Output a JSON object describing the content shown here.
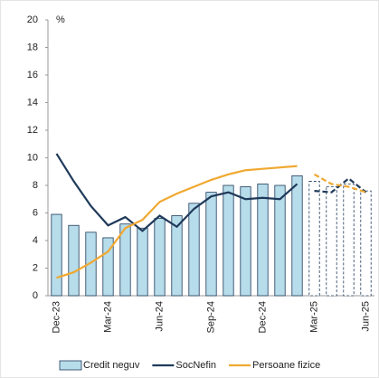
{
  "chart_data": {
    "type": "bar_line",
    "unit": "%",
    "categories": [
      "Dec-23",
      null,
      null,
      "Mar-24",
      null,
      null,
      "Jun-24",
      null,
      null,
      "Sep-24",
      null,
      null,
      "Dec-24",
      null,
      null,
      "Mar-25",
      null,
      null,
      "Jun-25"
    ],
    "series": [
      {
        "name": "Credit neguv",
        "type": "bar",
        "color": "#b7dcea",
        "edge": "#1f3a5a",
        "values": [
          5.9,
          5.1,
          4.6,
          4.2,
          5.2,
          4.9,
          5.6,
          5.8,
          6.7,
          7.5,
          8.0,
          7.9,
          8.1,
          8.0,
          8.7,
          8.3,
          7.9,
          8.1,
          7.6
        ]
      },
      {
        "name": "SocNefin",
        "type": "line",
        "color": "#1f3a5a",
        "values": [
          10.3,
          8.3,
          6.5,
          5.1,
          5.7,
          4.7,
          5.8,
          5.0,
          6.3,
          7.2,
          7.5,
          7.0,
          7.1,
          7.0,
          8.1,
          7.6,
          7.5,
          8.5,
          7.5
        ]
      },
      {
        "name": "Persoane fizice",
        "type": "line",
        "color": "#f0a830",
        "values": [
          1.3,
          1.7,
          2.4,
          3.2,
          4.9,
          5.5,
          6.8,
          7.4,
          7.9,
          8.4,
          8.8,
          9.1,
          9.2,
          9.3,
          9.4,
          8.8,
          8.1,
          7.9,
          7.5
        ]
      }
    ],
    "projection_start": 15,
    "ylim": [
      0,
      20
    ],
    "yticks": [
      0,
      2,
      4,
      6,
      8,
      10,
      12,
      14,
      16,
      18,
      20
    ]
  }
}
